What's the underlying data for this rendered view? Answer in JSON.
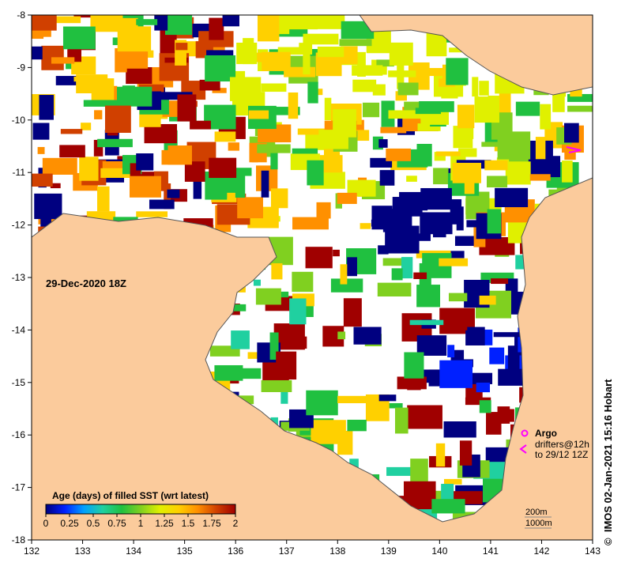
{
  "map": {
    "date_label": "29-Dec-2020 18Z",
    "credit": "IMOS 02-Jan-2021 15:16 Hobart",
    "credit_symbol": "©",
    "colors": {
      "land": "#fbcb9c",
      "no_data": "#ffffff",
      "coast": "#555555"
    },
    "x_ticks": [
      "132",
      "133",
      "134",
      "135",
      "136",
      "137",
      "138",
      "139",
      "140",
      "141",
      "142",
      "143"
    ],
    "y_ticks": [
      "-8",
      "-9",
      "-10",
      "-11",
      "-12",
      "-13",
      "-14",
      "-15",
      "-16",
      "-17",
      "-18"
    ],
    "lon_range": [
      132,
      143
    ],
    "lat_range": [
      -18,
      -8
    ]
  },
  "legend": {
    "title": "Age (days) of filled SST (wrt latest)",
    "labels": [
      "0",
      "0.25",
      "0.5",
      "0.75",
      "1",
      "1.25",
      "1.5",
      "1.75",
      "2"
    ],
    "colormap": [
      "#000080",
      "#0020ff",
      "#00a0ff",
      "#20d0a0",
      "#20c040",
      "#80d020",
      "#e0f000",
      "#ffd000",
      "#ff9000",
      "#d04000",
      "#a00000"
    ]
  },
  "markers": {
    "argo_label": "Argo",
    "argo_color": "#ff00ff",
    "drifter_line1": "drifters@12h",
    "drifter_line2": "to 29/12 12Z",
    "drifter_color": "#ff00ff"
  },
  "depth_contours": {
    "label_200": "200m",
    "label_1000": "1000m"
  }
}
